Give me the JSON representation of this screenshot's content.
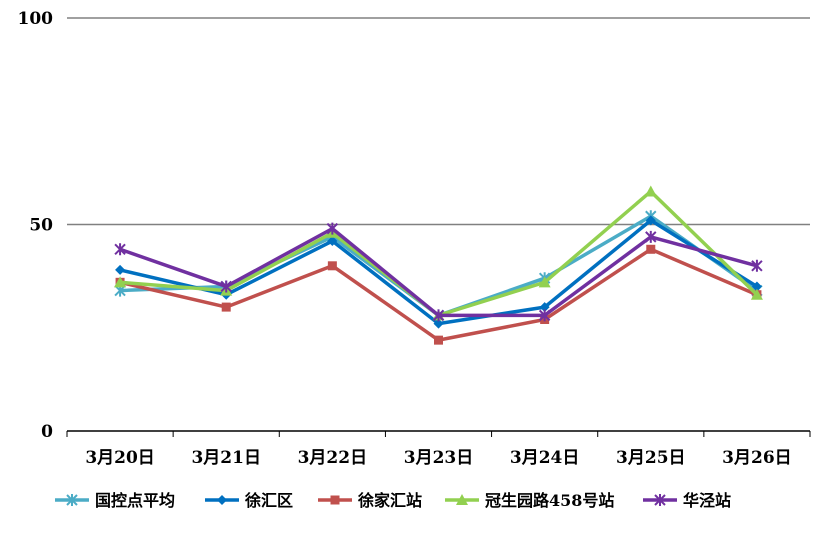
{
  "chart_data": {
    "type": "line",
    "title": "",
    "xlabel": "",
    "ylabel": "",
    "ylim": [
      0,
      100
    ],
    "yticks": [
      "0",
      "50",
      "100"
    ],
    "grid": true,
    "legend_position": "bottom",
    "categories": [
      "3月20日",
      "3月21日",
      "3月22日",
      "3月23日",
      "3月24日",
      "3月25日",
      "3月26日"
    ],
    "series": [
      {
        "name": "国控点平均",
        "color": "#4BACC6",
        "marker": "star",
        "values": [
          34,
          35,
          47,
          28,
          37,
          52,
          34
        ]
      },
      {
        "name": "徐汇区",
        "color": "#0070C0",
        "marker": "diamond",
        "values": [
          39,
          33,
          46,
          26,
          30,
          51,
          35
        ]
      },
      {
        "name": "徐家汇站",
        "color": "#C0504D",
        "marker": "square",
        "values": [
          36,
          30,
          40,
          22,
          27,
          44,
          33
        ]
      },
      {
        "name": "冠生园路458号站",
        "color": "#92D050",
        "marker": "triangle",
        "values": [
          36,
          34,
          48,
          28,
          36,
          58,
          33
        ]
      },
      {
        "name": "华泾站",
        "color": "#7030A0",
        "marker": "star",
        "values": [
          44,
          35,
          49,
          28,
          28,
          47,
          40
        ]
      }
    ]
  }
}
